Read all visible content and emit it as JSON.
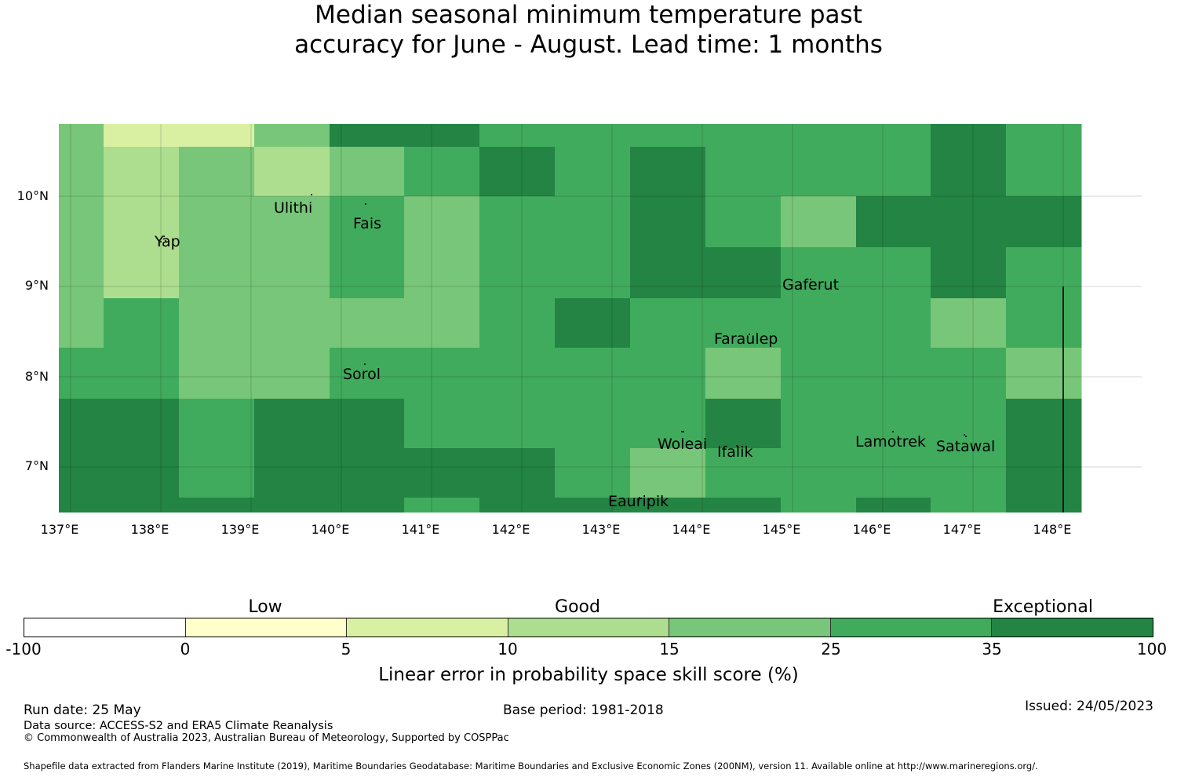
{
  "title_lines": [
    "Median seasonal minimum temperature past",
    "accuracy for June - August. Lead time: 1 months"
  ],
  "map": {
    "lon_range": [
      137.0,
      149.0
    ],
    "lat_range": [
      6.5,
      10.8
    ],
    "lon_ticks": [
      "137°E",
      "138°E",
      "139°E",
      "140°E",
      "141°E",
      "142°E",
      "143°E",
      "144°E",
      "145°E",
      "146°E",
      "147°E",
      "148°E"
    ],
    "lat_ticks": [
      "10°N",
      "9°N",
      "8°N",
      "7°N"
    ],
    "gridlines": true,
    "places": [
      "Ulithi",
      "Yap",
      "Fais",
      "Gaferut",
      "Faraulep",
      "Sorol",
      "Woleai",
      "Ifalik",
      "Lamotrek",
      "Satawal",
      "Eauripik"
    ],
    "skill_grid": [
      [
        4,
        2,
        2,
        4,
        6,
        6,
        5,
        5,
        5,
        5,
        5,
        5,
        6,
        5
      ],
      [
        4,
        3,
        4,
        3,
        4,
        5,
        6,
        5,
        6,
        5,
        5,
        5,
        6,
        5
      ],
      [
        4,
        3,
        4,
        4,
        5,
        4,
        5,
        5,
        6,
        5,
        4,
        6,
        6,
        6
      ],
      [
        4,
        3,
        4,
        4,
        5,
        4,
        5,
        5,
        6,
        6,
        5,
        5,
        6,
        5
      ],
      [
        4,
        5,
        4,
        4,
        4,
        4,
        5,
        6,
        5,
        5,
        5,
        5,
        4,
        5
      ],
      [
        5,
        5,
        4,
        4,
        5,
        5,
        5,
        5,
        5,
        4,
        5,
        5,
        5,
        4
      ],
      [
        6,
        6,
        5,
        6,
        6,
        5,
        5,
        5,
        5,
        6,
        5,
        5,
        5,
        6
      ],
      [
        6,
        6,
        5,
        6,
        6,
        6,
        6,
        5,
        4,
        5,
        5,
        5,
        5,
        6
      ],
      [
        6,
        6,
        6,
        6,
        6,
        5,
        6,
        6,
        6,
        6,
        5,
        6,
        5,
        6
      ]
    ],
    "boundary_line_lon": 148.0,
    "boundary_line_lat_top": 9.0
  },
  "legend": {
    "categories": [
      "Low",
      "Good",
      "Exceptional"
    ],
    "colors": [
      "#ffffff",
      "#ffffcc",
      "#d9f0a3",
      "#addd8e",
      "#78c679",
      "#41ab5d",
      "#238443"
    ],
    "tick_labels": [
      "-100",
      "0",
      "5",
      "10",
      "15",
      "25",
      "35",
      "100"
    ],
    "label": "Linear error in probability space skill score (%)"
  },
  "footer": {
    "run_date": "Run date: 25 May",
    "base_period": "Base period: 1981-2018",
    "issued": "Issued: 24/05/2023",
    "data_source": "Data source: ACCESS-S2 and ERA5 Climate Reanalysis",
    "copyright": "© Commonwealth of Australia 2023, Australian Bureau of Meteorology, Supported by COSPPac",
    "shapefile": "Shapefile data extracted from Flanders Marine Institute (2019), Maritime Boundaries Geodatabase: Maritime Boundaries and Exclusive Economic Zones (200NM), version 11. Available online at http://www.marineregions.org/."
  }
}
